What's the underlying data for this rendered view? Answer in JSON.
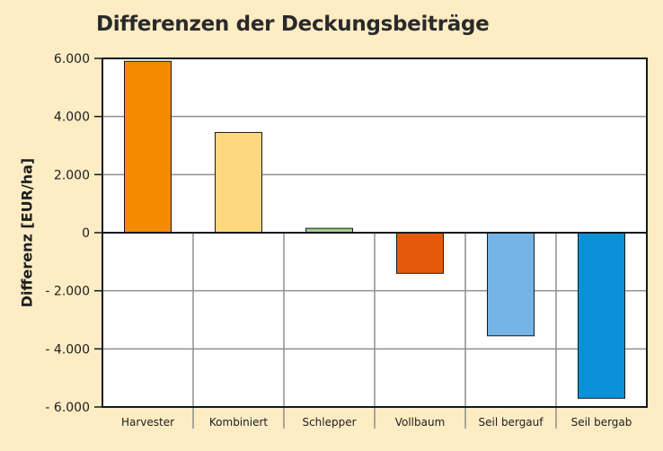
{
  "chart_data": {
    "type": "bar",
    "title": "Differenzen der Deckungsbeiträge",
    "xlabel": "",
    "ylabel": "Differenz [EUR/ha]",
    "ylim": [
      -6000,
      6000
    ],
    "yticks": [
      6000,
      4000,
      2000,
      0,
      -2000,
      -4000,
      -6000
    ],
    "ytick_labels": [
      "6.000",
      "4.000",
      "2.000",
      "0",
      "- 2.000",
      "- 4.000",
      "- 6.000"
    ],
    "categories": [
      "Harvester",
      "Kombiniert",
      "Schlepper",
      "Vollbaum",
      "Seil bergauf",
      "Seil bergab"
    ],
    "values": [
      5900,
      3450,
      150,
      -1400,
      -3550,
      -5700
    ],
    "colors": [
      "#f58a00",
      "#fed87f",
      "#9fd08a",
      "#e45a0a",
      "#74b5e6",
      "#0a91d8"
    ],
    "grid": true,
    "legend": "none"
  }
}
